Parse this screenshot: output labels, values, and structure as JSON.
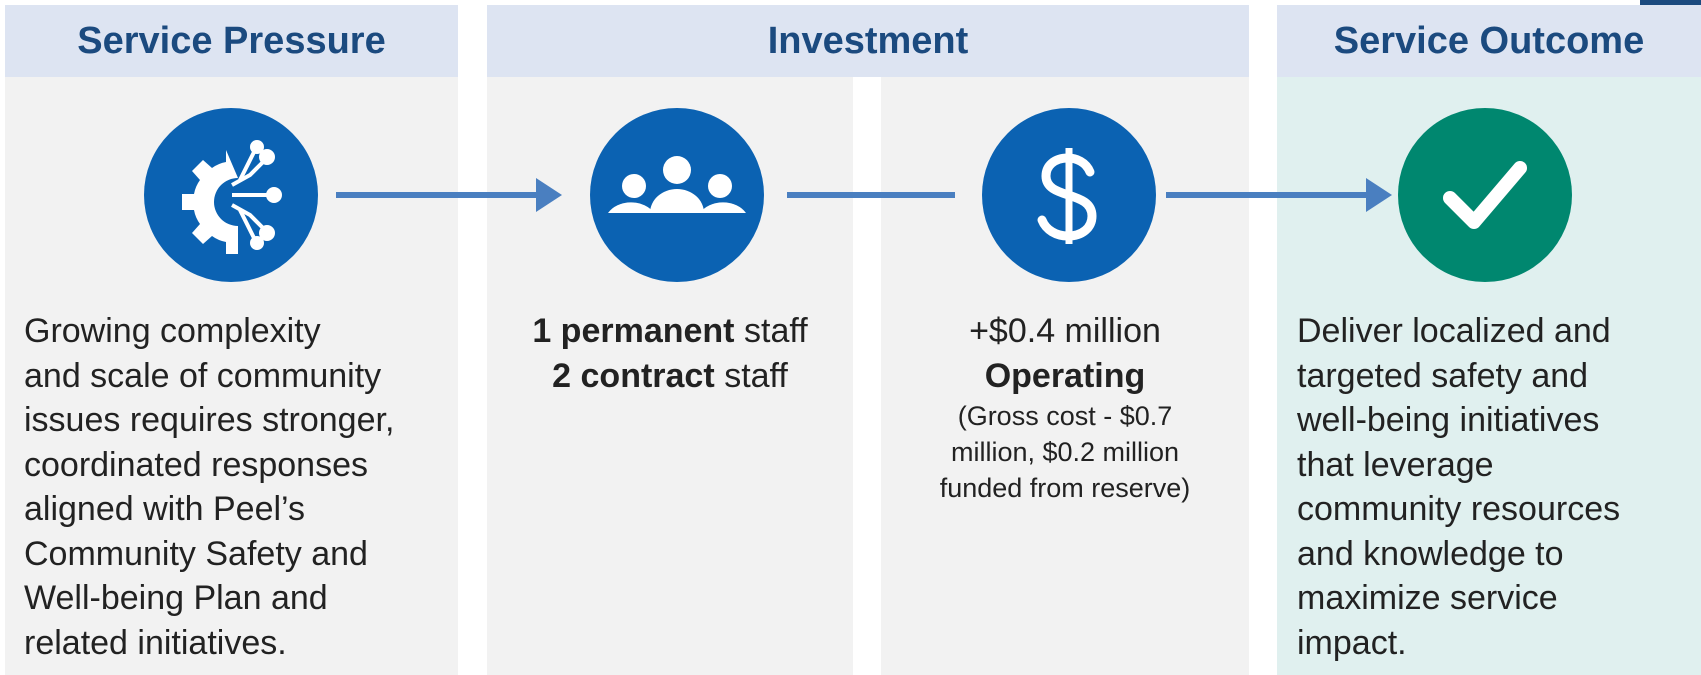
{
  "columns": [
    {
      "title": "Service Pressure",
      "text": [
        "Growing complexity",
        "and scale of community",
        "issues requires stronger,",
        "coordinated responses",
        "aligned with Peel’s",
        "Community Safety and",
        "Well-being Plan and",
        "related initiatives."
      ]
    },
    {
      "title": "Investment",
      "staffing": [
        {
          "bold": "1 permanent",
          "rest": "staff"
        },
        {
          "bold": "2 contract",
          "rest": "staff"
        }
      ],
      "amount": "+$0.4 million",
      "amount_type": "Operating",
      "note": [
        "(Gross cost - $0.7",
        "million, $0.2 million",
        "funded from reserve)"
      ]
    },
    {
      "title": "Service Outcome",
      "text": [
        "Deliver localized and",
        "targeted safety and",
        "well-being initiatives",
        "that leverage",
        "community resources",
        "and knowledge to",
        "maximize service",
        "impact."
      ]
    }
  ]
}
